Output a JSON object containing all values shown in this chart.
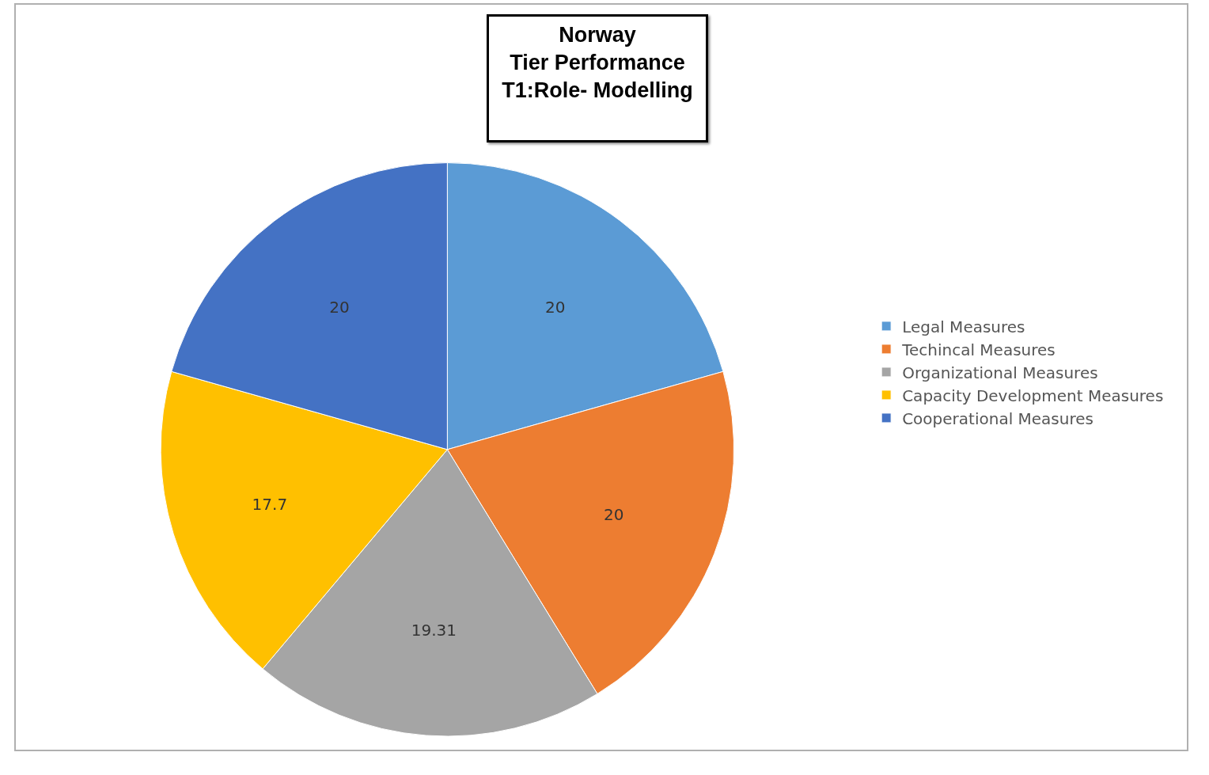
{
  "chart_data": {
    "type": "pie",
    "title": "Norway\nTier Performance\nT1:Role- Modelling",
    "categories": [
      "Legal Measures",
      "Techincal Measures",
      "Organizational Measures",
      "Capacity Development Measures",
      "Cooperational Measures"
    ],
    "values": [
      20,
      20,
      19.31,
      17.7,
      20
    ],
    "colors": [
      "#5b9bd5",
      "#ed7d31",
      "#a5a5a5",
      "#ffc000",
      "#4472c4"
    ],
    "data_labels": true,
    "legend": "right"
  }
}
